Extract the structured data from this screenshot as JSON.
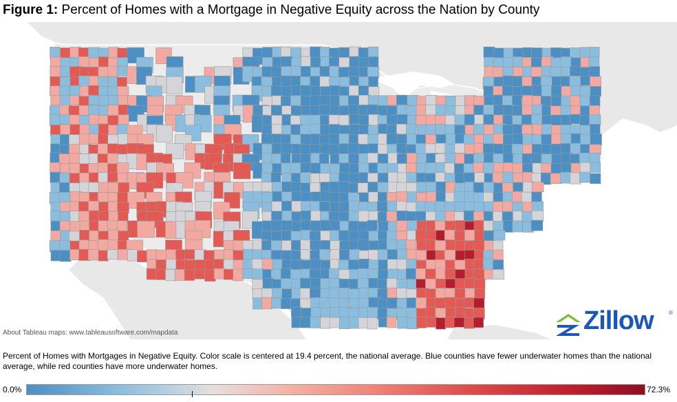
{
  "title": {
    "lead": "Figure 1:",
    "text": "Percent of Homes with a Mortgage in Negative Equity across the Nation by County"
  },
  "map": {
    "attribution": "About Tableau maps: www.tableausoftware.com/mapdata",
    "colors": {
      "water": "#ffffff",
      "land_foreign": "#e8e8e8",
      "land_us": "#ececec",
      "boundary": "#ffffff",
      "county_border": "#9a9a9a",
      "blue_dark": "#4c8fc2",
      "blue_light": "#8bbddf",
      "neutral": "#d5d5d9",
      "pink": "#f2a9a2",
      "red": "#e35a55",
      "red_dark": "#b41d2b"
    }
  },
  "logo": {
    "text": "Zillow",
    "reg": "®"
  },
  "caption": "Percent of Homes with Mortgages in Negative Equity. Color scale is centered at 19.4 percent, the national average. Blue counties have fewer underwater homes than the national average, while red counties have more underwater homes.",
  "legend": {
    "min_label": "0.0%",
    "max_label": "72.3%"
  }
}
